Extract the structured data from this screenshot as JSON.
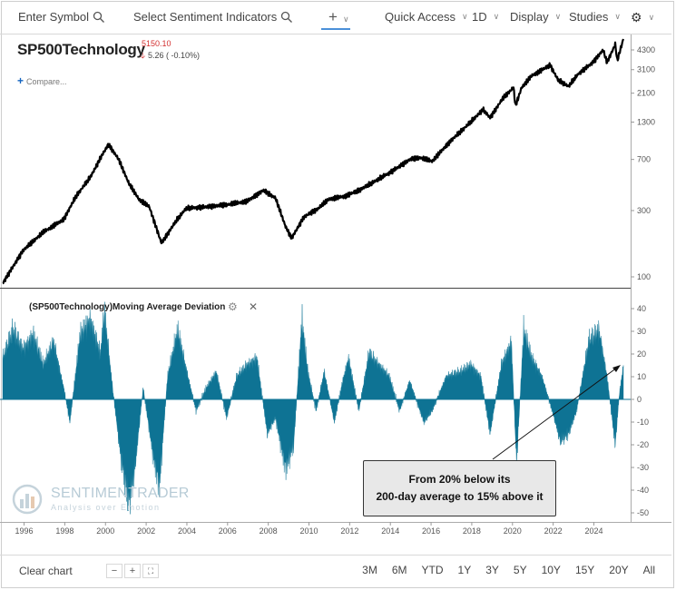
{
  "toolbar": {
    "symbol_placeholder": "Enter Symbol",
    "indicators_placeholder": "Select Sentiment Indicators",
    "quick_access": "Quick Access",
    "interval": "1D",
    "display": "Display",
    "studies": "Studies"
  },
  "quote": {
    "symbol": "SP500Technology",
    "price": "5150.10",
    "change": "5.26 ( -0.10%)",
    "compare": "Compare..."
  },
  "indicator": {
    "title": "(SP500Technology)Moving Average Deviation"
  },
  "logo": {
    "brand": "SENTIMENTRADER",
    "tagline": "Analysis over Emotion"
  },
  "annotation": {
    "line1": "From 20% below its",
    "line2": "200-day average to 15% above it"
  },
  "bottom": {
    "clear": "Clear chart",
    "zoom_out": "−",
    "zoom_in": "+",
    "ranges": [
      "3M",
      "6M",
      "YTD",
      "1Y",
      "3Y",
      "5Y",
      "10Y",
      "15Y",
      "20Y",
      "All"
    ]
  },
  "colors": {
    "price_line": "#000000",
    "deviation_fill": "#0e7394",
    "down_arrow": "#d32f2f",
    "accent": "#4a90d9"
  },
  "chart_data": [
    {
      "type": "line",
      "title": "SP500Technology",
      "scale": "log",
      "y_ticks": [
        100,
        300,
        700,
        1300,
        2100,
        3100,
        4300
      ],
      "x_ticks": [
        "1996",
        "1998",
        "2000",
        "2002",
        "2004",
        "2006",
        "2008",
        "2010",
        "2012",
        "2014",
        "2016",
        "2018",
        "2020",
        "2022",
        "2024"
      ],
      "x": [
        1995.0,
        1996.0,
        1997.0,
        1998.0,
        1998.6,
        1999.3,
        1999.9,
        2000.2,
        2000.7,
        2001.2,
        2001.7,
        2002.2,
        2002.8,
        2003.5,
        2004.0,
        2005.0,
        2006.0,
        2007.0,
        2007.8,
        2008.4,
        2008.9,
        2009.2,
        2009.8,
        2010.5,
        2011.0,
        2011.8,
        2012.5,
        2013.0,
        2014.0,
        2015.0,
        2015.5,
        2016.1,
        2017.0,
        2018.0,
        2018.6,
        2018.95,
        2019.6,
        2020.1,
        2020.2,
        2020.5,
        2021.0,
        2021.9,
        2022.3,
        2022.8,
        2023.3,
        2024.0,
        2024.5,
        2024.7,
        2025.1,
        2025.2,
        2025.5
      ],
      "y": [
        90,
        155,
        210,
        260,
        380,
        520,
        760,
        900,
        700,
        470,
        360,
        320,
        175,
        250,
        310,
        320,
        330,
        350,
        420,
        370,
        230,
        190,
        270,
        310,
        360,
        380,
        420,
        460,
        560,
        700,
        720,
        680,
        950,
        1300,
        1600,
        1400,
        1950,
        2300,
        1700,
        2300,
        2800,
        3350,
        2600,
        2350,
        2900,
        3500,
        4300,
        3500,
        4700,
        3600,
        5150
      ]
    },
    {
      "type": "area",
      "title": "(SP500Technology)Moving Average Deviation",
      "ylim": [
        -50,
        40
      ],
      "y_ticks": [
        40,
        30,
        20,
        10,
        0,
        -10,
        -20,
        -30,
        -40,
        -50
      ],
      "x": [
        1995.0,
        1995.5,
        1996.0,
        1996.5,
        1997.0,
        1997.5,
        1998.0,
        1998.3,
        1998.8,
        1999.3,
        1999.8,
        2000.0,
        2000.4,
        2000.8,
        2001.2,
        2001.5,
        2001.9,
        2002.4,
        2002.7,
        2003.1,
        2003.6,
        2004.0,
        2004.5,
        2005.0,
        2005.5,
        2006.0,
        2006.5,
        2007.0,
        2007.5,
        2008.0,
        2008.4,
        2008.9,
        2009.3,
        2009.7,
        2010.0,
        2010.4,
        2010.8,
        2011.3,
        2011.7,
        2012.0,
        2012.5,
        2013.0,
        2014.0,
        2014.5,
        2015.0,
        2015.7,
        2016.1,
        2016.8,
        2017.5,
        2018.0,
        2018.5,
        2018.95,
        2019.5,
        2020.0,
        2020.25,
        2020.6,
        2021.0,
        2021.5,
        2022.0,
        2022.4,
        2022.8,
        2023.2,
        2023.8,
        2024.3,
        2024.7,
        2025.1,
        2025.3,
        2025.5
      ],
      "y": [
        18,
        30,
        22,
        28,
        15,
        25,
        5,
        -10,
        28,
        35,
        20,
        38,
        5,
        -25,
        -45,
        -30,
        5,
        -25,
        -38,
        10,
        30,
        14,
        -5,
        5,
        12,
        -8,
        10,
        15,
        18,
        -15,
        -8,
        -30,
        -20,
        35,
        12,
        -5,
        12,
        -10,
        8,
        18,
        -5,
        20,
        10,
        -5,
        8,
        -10,
        -5,
        10,
        12,
        15,
        10,
        -15,
        15,
        25,
        -28,
        30,
        18,
        10,
        -5,
        -18,
        -15,
        -5,
        25,
        30,
        10,
        -20,
        2,
        15
      ]
    }
  ]
}
